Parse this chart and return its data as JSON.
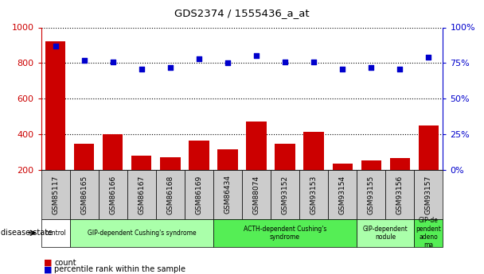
{
  "title": "GDS2374 / 1555436_a_at",
  "samples": [
    "GSM85117",
    "GSM86165",
    "GSM86166",
    "GSM86167",
    "GSM86168",
    "GSM86169",
    "GSM86434",
    "GSM88074",
    "GSM93152",
    "GSM93153",
    "GSM93154",
    "GSM93155",
    "GSM93156",
    "GSM93157"
  ],
  "counts": [
    920,
    345,
    400,
    280,
    270,
    365,
    315,
    470,
    345,
    415,
    235,
    255,
    265,
    450
  ],
  "percentiles": [
    87,
    77,
    76,
    71,
    72,
    78,
    75,
    80,
    76,
    76,
    71,
    72,
    71,
    79
  ],
  "ylim_left": [
    200,
    1000
  ],
  "ylim_right": [
    0,
    100
  ],
  "yticks_left": [
    200,
    400,
    600,
    800,
    1000
  ],
  "yticks_right": [
    0,
    25,
    50,
    75,
    100
  ],
  "bar_color": "#cc0000",
  "dot_color": "#0000cc",
  "disease_groups": [
    {
      "label": "control",
      "start": 0,
      "end": 1,
      "color": "#ffffff",
      "text_color": "#000000"
    },
    {
      "label": "GIP-dependent Cushing's syndrome",
      "start": 1,
      "end": 6,
      "color": "#aaffaa",
      "text_color": "#000000"
    },
    {
      "label": "ACTH-dependent Cushing's\nsyndrome",
      "start": 6,
      "end": 11,
      "color": "#55ee55",
      "text_color": "#000000"
    },
    {
      "label": "GIP-dependent\nnodule",
      "start": 11,
      "end": 13,
      "color": "#aaffaa",
      "text_color": "#000000"
    },
    {
      "label": "GIP-de\npendent\nadeno\nma",
      "start": 13,
      "end": 14,
      "color": "#55ee55",
      "text_color": "#000000"
    }
  ],
  "disease_state_label": "disease state",
  "legend_count_label": "count",
  "legend_pct_label": "percentile rank within the sample",
  "background_color": "#ffffff",
  "plot_bg_color": "#ffffff",
  "xtick_bg_color": "#cccccc"
}
